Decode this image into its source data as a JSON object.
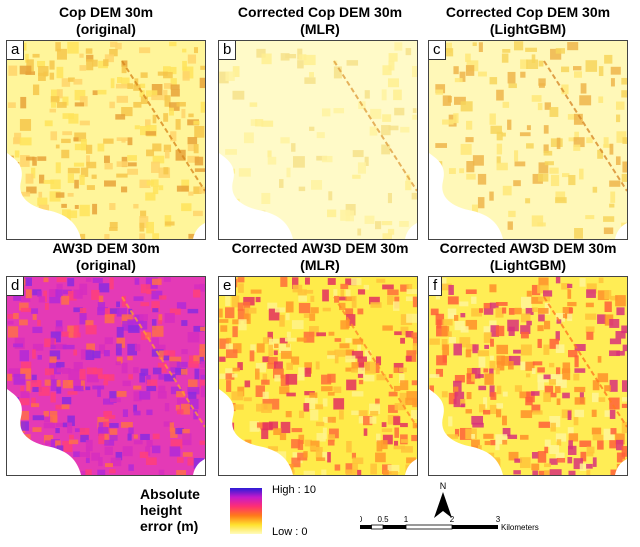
{
  "panels": [
    {
      "letter": "a",
      "title_line1": "Cop DEM 30m",
      "title_line2": "(original)",
      "style": "cop_orig"
    },
    {
      "letter": "b",
      "title_line1": "Corrected Cop DEM 30m",
      "title_line2": "(MLR)",
      "style": "cop_mlr"
    },
    {
      "letter": "c",
      "title_line1": "Corrected Cop DEM 30m",
      "title_line2": "(LightGBM)",
      "style": "cop_lgbm"
    },
    {
      "letter": "d",
      "title_line1": "AW3D DEM 30m",
      "title_line2": "(original)",
      "style": "aw_orig"
    },
    {
      "letter": "e",
      "title_line1": "Corrected AW3D DEM 30m",
      "title_line2": "(MLR)",
      "style": "aw_mlr"
    },
    {
      "letter": "f",
      "title_line1": "Corrected AW3D DEM 30m",
      "title_line2": "(LightGBM)",
      "style": "aw_lgbm"
    }
  ],
  "legend": {
    "title_line1": "Absolute",
    "title_line2": "height",
    "title_line3": "error (m)",
    "high_label": "High : 10",
    "low_label": "Low : 0",
    "ramp_colors": [
      "#2b1bd6",
      "#c51acb",
      "#ff2f73",
      "#ff7a1a",
      "#ffe22e",
      "#fffbbe"
    ]
  },
  "north_arrow": {
    "label": "N"
  },
  "scale_bar": {
    "ticks": [
      "0",
      "0.5",
      "1",
      "2",
      "3"
    ],
    "units": "Kilometers"
  }
}
